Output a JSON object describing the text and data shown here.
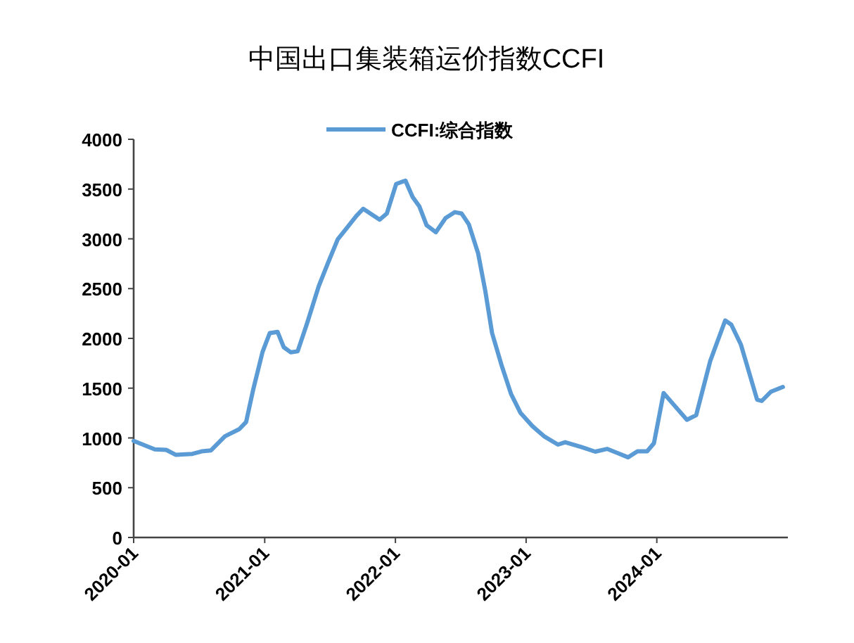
{
  "chart_data": {
    "type": "line",
    "title": "中国出口集装箱运价指数CCFI",
    "legend": "top",
    "grid": false,
    "marker": "none",
    "line_style": "solid",
    "x": [
      "2020-01-01",
      "2020-02-29",
      "2020-04-01",
      "2020-04-28",
      "2020-06-13",
      "2020-07-09",
      "2020-08-04",
      "2020-09-12",
      "2020-10-22",
      "2020-11-10",
      "2020-11-30",
      "2020-12-26",
      "2021-01-15",
      "2021-02-06",
      "2021-02-23",
      "2021-03-15",
      "2021-04-03",
      "2021-04-29",
      "2021-06-01",
      "2021-06-27",
      "2021-07-24",
      "2021-08-19",
      "2021-09-14",
      "2021-10-03",
      "2021-10-23",
      "2021-11-18",
      "2021-12-08",
      "2022-01-03",
      "2022-01-29",
      "2022-02-18",
      "2022-03-09",
      "2022-03-29",
      "2022-04-24",
      "2022-05-21",
      "2022-06-16",
      "2022-07-05",
      "2022-07-25",
      "2022-08-20",
      "2022-09-09",
      "2022-09-28",
      "2022-10-25",
      "2022-11-20",
      "2022-12-16",
      "2023-01-18",
      "2023-02-20",
      "2023-03-31",
      "2023-04-20",
      "2023-06-04",
      "2023-07-13",
      "2023-08-15",
      "2023-09-17",
      "2023-10-13",
      "2023-11-08",
      "2023-12-05",
      "2023-12-24",
      "2024-01-20",
      "2024-02-14",
      "2024-03-25",
      "2024-04-20",
      "2024-05-29",
      "2024-07-10",
      "2024-07-27",
      "2024-08-23",
      "2024-10-07",
      "2024-10-20",
      "2024-11-15",
      "2024-12-18"
    ],
    "series": [
      {
        "name": "CCFI:综合指数",
        "color": "#5b9bd5",
        "values": [
          970,
          885,
          880,
          830,
          840,
          865,
          875,
          1017,
          1088,
          1160,
          1488,
          1865,
          2053,
          2065,
          1912,
          1860,
          1870,
          2148,
          2525,
          2760,
          2996,
          3113,
          3231,
          3302,
          3254,
          3193,
          3254,
          3551,
          3585,
          3420,
          3325,
          3137,
          3066,
          3208,
          3268,
          3254,
          3146,
          2854,
          2477,
          2053,
          1724,
          1441,
          1253,
          1121,
          1017,
          933,
          957,
          909,
          862,
          890,
          843,
          805,
          866,
          866,
          947,
          1451,
          1347,
          1182,
          1229,
          1771,
          2180,
          2138,
          1936,
          1385,
          1371,
          1465,
          1512
        ]
      }
    ],
    "xlim": [
      "2020-01",
      "2025-01"
    ],
    "xticks": [
      "2020-01",
      "2021-01",
      "2022-01",
      "2023-01",
      "2024-01"
    ],
    "ylim": [
      0,
      4000
    ],
    "yticks": [
      0,
      500,
      1000,
      1500,
      2000,
      2500,
      3000,
      3500,
      4000
    ]
  }
}
